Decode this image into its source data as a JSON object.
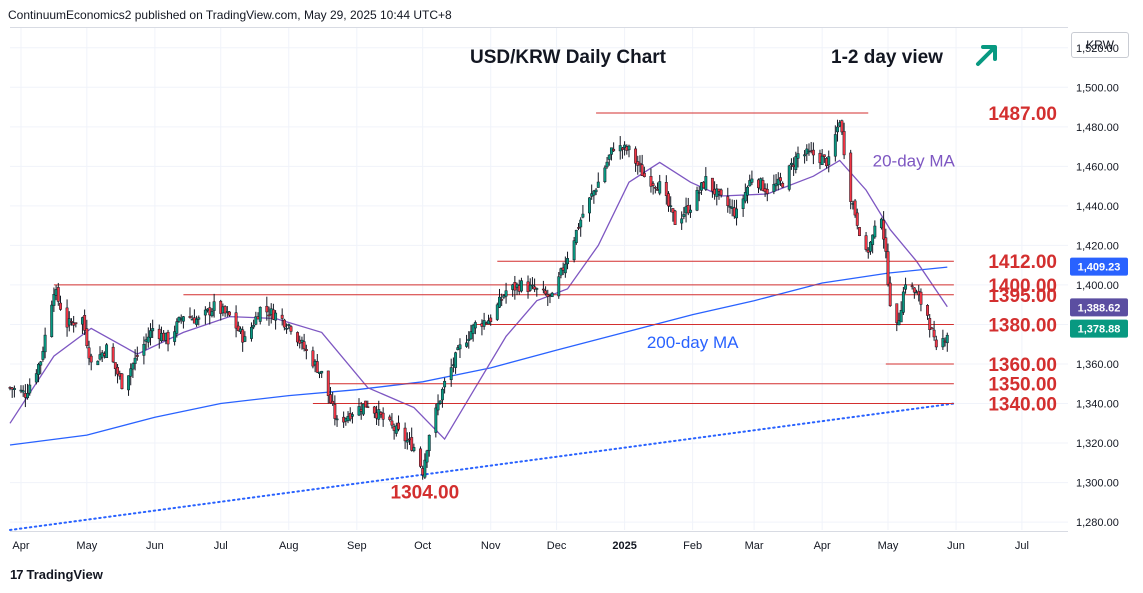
{
  "publisher_line": "ContinuumEconomics2 published on TradingView.com, May 29, 2025 10:44 UTC+8",
  "currency": "KRW",
  "footer_brand": "TradingView",
  "colors": {
    "up": "#089981",
    "down": "#f23645",
    "wick": "#131722",
    "ma20": "#7e57c2",
    "ma200": "#2962ff",
    "level": "#d32f2f",
    "trend": "#2962ff",
    "arrow": "#089981"
  },
  "chart_data": {
    "type": "candlestick",
    "title": "USD/KRW Daily Chart",
    "subtitle": "1-2 day view",
    "subtitle_icon": "up-right-arrow-icon",
    "x_ticks": [
      "Apr",
      "May",
      "Jun",
      "Jul",
      "Aug",
      "Sep",
      "Oct",
      "Nov",
      "Dec",
      "2025",
      "Feb",
      "Mar",
      "Apr",
      "May",
      "Jun",
      "Jul"
    ],
    "y_ticks": [
      "1,280.00",
      "1,300.00",
      "1,320.00",
      "1,340.00",
      "1,360.00",
      "1,380.00",
      "1,400.00",
      "1,420.00",
      "1,440.00",
      "1,460.00",
      "1,480.00",
      "1,500.00",
      "1,520.00"
    ],
    "ylim": [
      1276,
      1530
    ],
    "x_range": [
      "2024-03-27",
      "2025-07-22"
    ],
    "grid": true,
    "series": [
      {
        "name": "USD/KRW",
        "points": [
          [
            "2024-03-27",
            1348
          ],
          [
            "2024-04-03",
            1345
          ],
          [
            "2024-04-10",
            1362
          ],
          [
            "2024-04-16",
            1398
          ],
          [
            "2024-04-22",
            1380
          ],
          [
            "2024-04-29",
            1383
          ],
          [
            "2024-05-03",
            1360
          ],
          [
            "2024-05-10",
            1368
          ],
          [
            "2024-05-17",
            1350
          ],
          [
            "2024-05-24",
            1364
          ],
          [
            "2024-05-31",
            1378
          ],
          [
            "2024-06-07",
            1372
          ],
          [
            "2024-06-14",
            1385
          ],
          [
            "2024-06-21",
            1382
          ],
          [
            "2024-06-28",
            1389
          ],
          [
            "2024-07-05",
            1384
          ],
          [
            "2024-07-12",
            1372
          ],
          [
            "2024-07-19",
            1388
          ],
          [
            "2024-07-26",
            1385
          ],
          [
            "2024-08-02",
            1379
          ],
          [
            "2024-08-09",
            1366
          ],
          [
            "2024-08-16",
            1355
          ],
          [
            "2024-08-23",
            1330
          ],
          [
            "2024-08-30",
            1336
          ],
          [
            "2024-09-06",
            1340
          ],
          [
            "2024-09-13",
            1332
          ],
          [
            "2024-09-20",
            1325
          ],
          [
            "2024-09-27",
            1318
          ],
          [
            "2024-10-01",
            1306
          ],
          [
            "2024-10-04",
            1325
          ],
          [
            "2024-10-11",
            1350
          ],
          [
            "2024-10-18",
            1368
          ],
          [
            "2024-10-25",
            1380
          ],
          [
            "2024-11-01",
            1383
          ],
          [
            "2024-11-08",
            1397
          ],
          [
            "2024-11-15",
            1400
          ],
          [
            "2024-11-22",
            1397
          ],
          [
            "2024-11-29",
            1393
          ],
          [
            "2024-12-06",
            1415
          ],
          [
            "2024-12-13",
            1436
          ],
          [
            "2024-12-20",
            1452
          ],
          [
            "2024-12-27",
            1470
          ],
          [
            "2025-01-03",
            1468
          ],
          [
            "2025-01-10",
            1455
          ],
          [
            "2025-01-17",
            1450
          ],
          [
            "2025-01-24",
            1432
          ],
          [
            "2025-01-31",
            1440
          ],
          [
            "2025-02-07",
            1453
          ],
          [
            "2025-02-14",
            1443
          ],
          [
            "2025-02-21",
            1436
          ],
          [
            "2025-02-28",
            1455
          ],
          [
            "2025-03-07",
            1448
          ],
          [
            "2025-03-14",
            1452
          ],
          [
            "2025-03-21",
            1466
          ],
          [
            "2025-03-28",
            1466
          ],
          [
            "2025-04-04",
            1462
          ],
          [
            "2025-04-09",
            1484
          ],
          [
            "2025-04-14",
            1445
          ],
          [
            "2025-04-21",
            1415
          ],
          [
            "2025-04-28",
            1436
          ],
          [
            "2025-05-02",
            1392
          ],
          [
            "2025-05-05",
            1378
          ],
          [
            "2025-05-09",
            1402
          ],
          [
            "2025-05-14",
            1395
          ],
          [
            "2025-05-19",
            1385
          ],
          [
            "2025-05-23",
            1366
          ],
          [
            "2025-05-28",
            1376
          ]
        ]
      },
      {
        "name": "20-day MA",
        "points": [
          [
            "2024-03-27",
            1330
          ],
          [
            "2024-04-16",
            1364
          ],
          [
            "2024-05-03",
            1378
          ],
          [
            "2024-05-24",
            1365
          ],
          [
            "2024-06-14",
            1376
          ],
          [
            "2024-07-05",
            1384
          ],
          [
            "2024-07-26",
            1383
          ],
          [
            "2024-08-16",
            1376
          ],
          [
            "2024-09-06",
            1348
          ],
          [
            "2024-09-27",
            1338
          ],
          [
            "2024-10-11",
            1322
          ],
          [
            "2024-10-25",
            1348
          ],
          [
            "2024-11-08",
            1374
          ],
          [
            "2024-11-22",
            1392
          ],
          [
            "2024-12-06",
            1398
          ],
          [
            "2024-12-20",
            1420
          ],
          [
            "2025-01-03",
            1452
          ],
          [
            "2025-01-17",
            1462
          ],
          [
            "2025-01-31",
            1452
          ],
          [
            "2025-02-14",
            1445
          ],
          [
            "2025-03-07",
            1446
          ],
          [
            "2025-03-28",
            1455
          ],
          [
            "2025-04-09",
            1463
          ],
          [
            "2025-04-21",
            1448
          ],
          [
            "2025-05-02",
            1428
          ],
          [
            "2025-05-14",
            1412
          ],
          [
            "2025-05-28",
            1389
          ]
        ]
      },
      {
        "name": "200-day MA",
        "points": [
          [
            "2024-03-27",
            1319
          ],
          [
            "2024-05-01",
            1324
          ],
          [
            "2024-06-01",
            1333
          ],
          [
            "2024-07-01",
            1340
          ],
          [
            "2024-08-01",
            1344
          ],
          [
            "2024-09-01",
            1347
          ],
          [
            "2024-10-01",
            1351
          ],
          [
            "2024-11-01",
            1358
          ],
          [
            "2024-12-01",
            1367
          ],
          [
            "2025-01-01",
            1376
          ],
          [
            "2025-02-01",
            1385
          ],
          [
            "2025-03-01",
            1392
          ],
          [
            "2025-04-01",
            1401
          ],
          [
            "2025-05-01",
            1406
          ],
          [
            "2025-05-28",
            1409
          ]
        ]
      }
    ],
    "trendline": {
      "from": [
        "2024-03-27",
        1276
      ],
      "to": [
        "2025-05-31",
        1340
      ],
      "style": "dotted"
    },
    "levels": [
      {
        "value": 1487,
        "label": "1487.00",
        "from": "2024-12-19",
        "to": "2025-04-22"
      },
      {
        "value": 1412,
        "label": "1412.00",
        "from": "2024-11-04",
        "to": "2025-05-31"
      },
      {
        "value": 1400,
        "label": "1400.00",
        "from": "2024-04-16",
        "to": "2025-05-31"
      },
      {
        "value": 1395,
        "label": "1395.00",
        "from": "2024-06-14",
        "to": "2025-05-31"
      },
      {
        "value": 1380,
        "label": "1380.00",
        "from": "2024-10-25",
        "to": "2025-05-31"
      },
      {
        "value": 1360,
        "label": "1360.00",
        "from": "2025-04-30",
        "to": "2025-05-31"
      },
      {
        "value": 1350,
        "label": "1350.00",
        "from": "2024-08-19",
        "to": "2025-05-31"
      },
      {
        "value": 1340,
        "label": "1340.00",
        "from": "2024-08-12",
        "to": "2025-05-31"
      }
    ],
    "annotations": [
      {
        "text": "1304.00",
        "x": "2024-10-02",
        "y": 1304
      },
      {
        "text": "20-day MA",
        "x": "2025-04-24",
        "y": 1460
      },
      {
        "text": "200-day MA",
        "x": "2025-02-01",
        "y": 1368
      }
    ],
    "price_tags": [
      {
        "value": "1,409.23",
        "at": 1409.23,
        "color": "#2962ff"
      },
      {
        "value": "1,388.62",
        "at": 1388.62,
        "color": "#5b4ea1"
      },
      {
        "value": "1,378.88",
        "at": 1378.88,
        "color": "#089981"
      }
    ]
  }
}
